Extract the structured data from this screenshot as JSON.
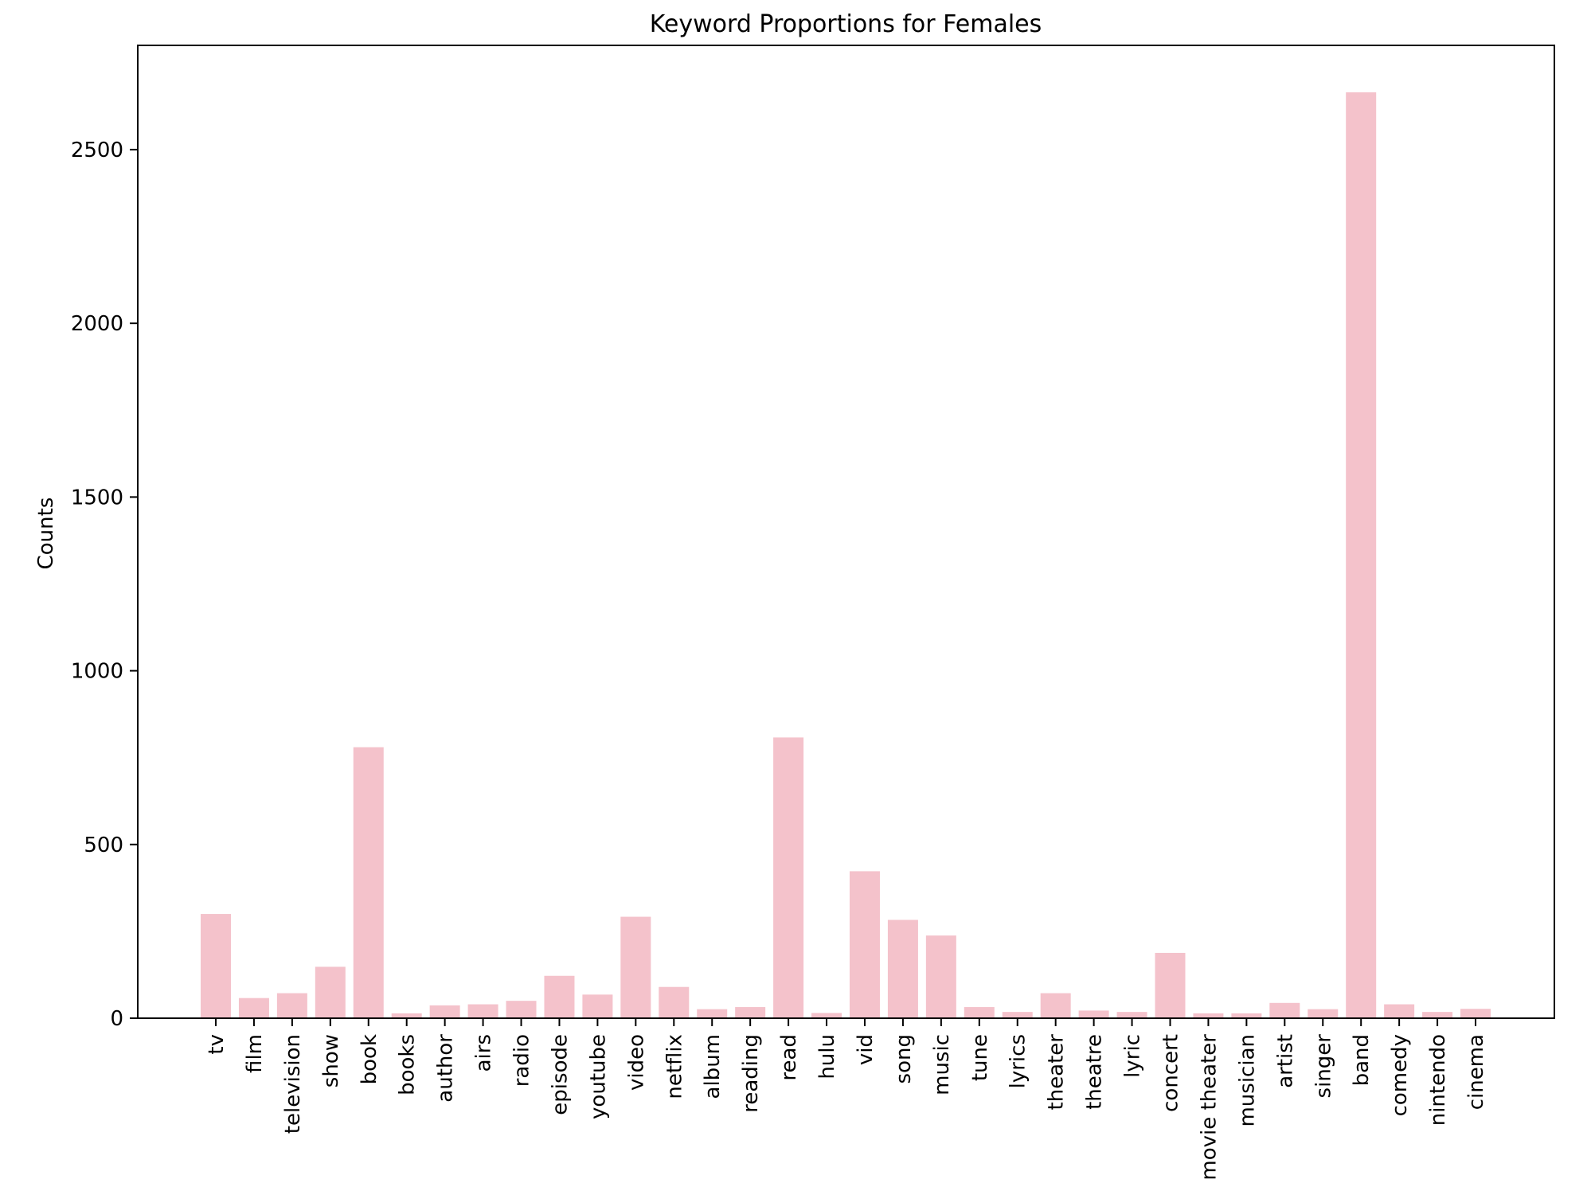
{
  "chart_data": {
    "type": "bar",
    "title": "Keyword Proportions for Females",
    "xlabel": "",
    "ylabel": "Counts",
    "ylim": [
      0,
      2800
    ],
    "yticks": [
      0,
      500,
      1000,
      1500,
      2000,
      2500
    ],
    "grid": false,
    "bar_color": "#f4c2cb",
    "categories": [
      "tv",
      "film",
      "television",
      "show",
      "book",
      "books",
      "author",
      "airs",
      "radio",
      "episode",
      "youtube",
      "video",
      "netflix",
      "album",
      "reading",
      "read",
      "hulu",
      "vid",
      "song",
      "music",
      "tune",
      "lyrics",
      "theater",
      "theatre",
      "lyric",
      "concert",
      "movie theater",
      "musician",
      "artist",
      "singer",
      "band",
      "comedy",
      "nintendo",
      "cinema"
    ],
    "values": [
      300,
      58,
      72,
      148,
      780,
      14,
      37,
      40,
      50,
      122,
      68,
      292,
      90,
      26,
      32,
      808,
      15,
      423,
      283,
      238,
      32,
      18,
      72,
      22,
      18,
      188,
      14,
      14,
      44,
      26,
      2665,
      40,
      18,
      27
    ]
  }
}
